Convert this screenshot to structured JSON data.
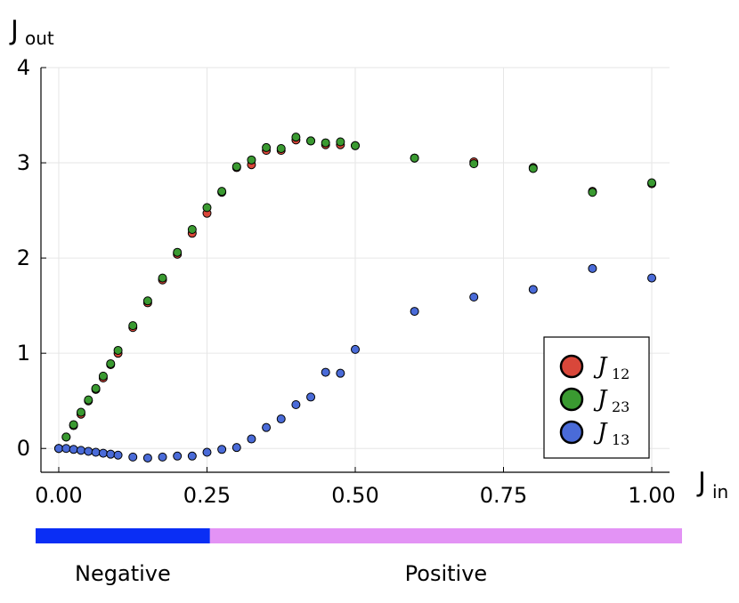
{
  "chart_data": {
    "type": "scatter",
    "xlim": [
      -0.03,
      1.03
    ],
    "ylim": [
      -0.25,
      4.0
    ],
    "x_ticks": [
      0.0,
      0.25,
      0.5,
      0.75,
      1.0
    ],
    "x_tick_labels": [
      "0.00",
      "0.25",
      "0.50",
      "0.75",
      "1.00"
    ],
    "y_ticks": [
      0,
      1,
      2,
      3,
      4
    ],
    "y_tick_labels": [
      "0",
      "1",
      "2",
      "3",
      "4"
    ],
    "xlabel": {
      "main": "J",
      "sub": "in"
    },
    "ylabel": {
      "main": "J",
      "sub": "out"
    },
    "grid": true,
    "legend_placement": "bottom-right",
    "series": [
      {
        "name": "J",
        "name_sub": "12",
        "color": "#d9473a",
        "x": [
          0.0,
          0.0125,
          0.025,
          0.0375,
          0.05,
          0.0625,
          0.075,
          0.0875,
          0.1,
          0.125,
          0.15,
          0.175,
          0.2,
          0.225,
          0.25,
          0.275,
          0.3,
          0.325,
          0.35,
          0.375,
          0.4,
          0.425,
          0.45,
          0.475,
          0.5,
          0.6,
          0.7,
          0.8,
          0.9,
          1.0
        ],
        "y": [
          0.0,
          0.12,
          0.24,
          0.36,
          0.5,
          0.62,
          0.74,
          0.88,
          1.0,
          1.27,
          1.53,
          1.77,
          2.04,
          2.26,
          2.47,
          2.69,
          2.95,
          2.98,
          3.13,
          3.13,
          3.24,
          3.23,
          3.19,
          3.19,
          3.18,
          3.05,
          3.01,
          2.95,
          2.7,
          2.78
        ]
      },
      {
        "name": "J",
        "name_sub": "23",
        "color": "#3a9a31",
        "x": [
          0.0,
          0.0125,
          0.025,
          0.0375,
          0.05,
          0.0625,
          0.075,
          0.0875,
          0.1,
          0.125,
          0.15,
          0.175,
          0.2,
          0.225,
          0.25,
          0.275,
          0.3,
          0.325,
          0.35,
          0.375,
          0.4,
          0.425,
          0.45,
          0.475,
          0.5,
          0.6,
          0.7,
          0.8,
          0.9,
          1.0
        ],
        "y": [
          0.0,
          0.12,
          0.25,
          0.38,
          0.51,
          0.63,
          0.76,
          0.89,
          1.03,
          1.29,
          1.55,
          1.79,
          2.06,
          2.3,
          2.53,
          2.7,
          2.96,
          3.03,
          3.16,
          3.15,
          3.27,
          3.23,
          3.21,
          3.22,
          3.18,
          3.05,
          2.99,
          2.94,
          2.69,
          2.79
        ]
      },
      {
        "name": "J",
        "name_sub": "13",
        "color": "#4a6bd8",
        "x": [
          0.0,
          0.0125,
          0.025,
          0.0375,
          0.05,
          0.0625,
          0.075,
          0.0875,
          0.1,
          0.125,
          0.15,
          0.175,
          0.2,
          0.225,
          0.25,
          0.275,
          0.3,
          0.325,
          0.35,
          0.375,
          0.4,
          0.425,
          0.45,
          0.475,
          0.5,
          0.6,
          0.7,
          0.8,
          0.9,
          1.0
        ],
        "y": [
          0.0,
          0.0,
          -0.01,
          -0.02,
          -0.03,
          -0.04,
          -0.05,
          -0.06,
          -0.07,
          -0.09,
          -0.1,
          -0.09,
          -0.08,
          -0.08,
          -0.04,
          -0.01,
          0.01,
          0.1,
          0.22,
          0.31,
          0.46,
          0.54,
          0.8,
          0.79,
          1.04,
          1.44,
          1.59,
          1.67,
          1.89,
          1.79
        ]
      }
    ],
    "regions": [
      {
        "label": "Negative",
        "from": -0.03,
        "to": 0.255,
        "color": "#0a2ef5"
      },
      {
        "label": "Positive",
        "from": 0.255,
        "to": 1.05,
        "color": "#e393f5"
      }
    ]
  }
}
